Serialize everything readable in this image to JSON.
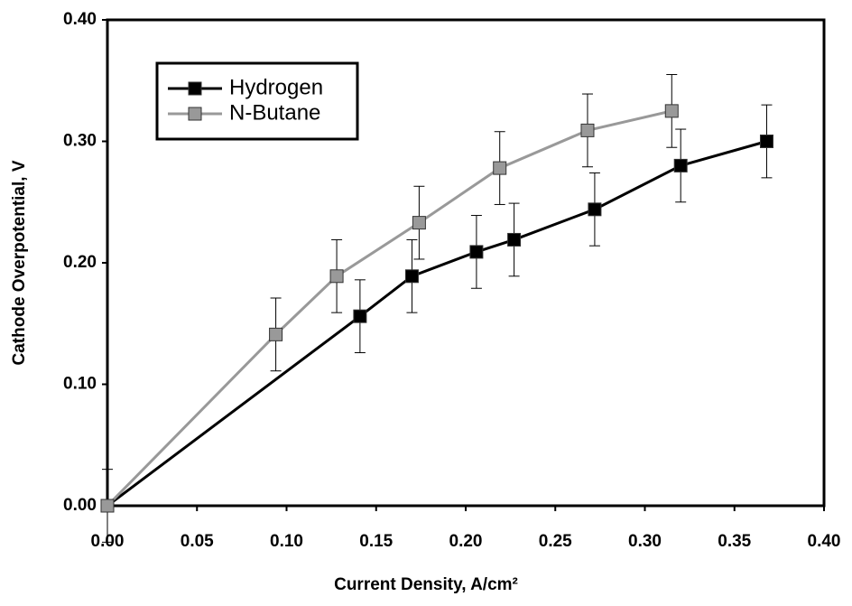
{
  "chart_data": {
    "type": "line",
    "x_label": "Current Density, A/cm²",
    "y_label": "Cathode Overpotential, V",
    "xlim": [
      0,
      0.4
    ],
    "ylim": [
      0,
      0.4
    ],
    "xticks": [
      {
        "value": 0,
        "label": "0.00"
      },
      {
        "value": 0.05,
        "label": "0.05"
      },
      {
        "value": 0.1,
        "label": "0.10"
      },
      {
        "value": 0.15,
        "label": "0.15"
      },
      {
        "value": 0.2,
        "label": "0.20"
      },
      {
        "value": 0.25,
        "label": "0.25"
      },
      {
        "value": 0.3,
        "label": "0.30"
      },
      {
        "value": 0.35,
        "label": "0.35"
      },
      {
        "value": 0.4,
        "label": "0.40"
      }
    ],
    "yticks": [
      {
        "value": 0,
        "label": "0.00"
      },
      {
        "value": 0.1,
        "label": "0.10"
      },
      {
        "value": 0.2,
        "label": "0.20"
      },
      {
        "value": 0.3,
        "label": "0.30"
      },
      {
        "value": 0.4,
        "label": "0.40"
      }
    ],
    "legend": "upper left",
    "series": [
      {
        "name": "Hydrogen",
        "color": "#000000",
        "marker_color": "#000000",
        "x": [
          0,
          0.141,
          0.17,
          0.206,
          0.227,
          0.272,
          0.32,
          0.368
        ],
        "values": [
          0,
          0.156,
          0.189,
          0.209,
          0.219,
          0.244,
          0.28,
          0.3
        ],
        "errors": [
          0.03,
          0.03,
          0.03,
          0.03,
          0.03,
          0.03,
          0.03,
          0.03
        ]
      },
      {
        "name": "N-Butane",
        "color": "#999999",
        "marker_color": "#999999",
        "x": [
          0,
          0.094,
          0.128,
          0.174,
          0.219,
          0.268,
          0.315
        ],
        "values": [
          0,
          0.141,
          0.189,
          0.233,
          0.278,
          0.309,
          0.325
        ],
        "errors": [
          0,
          0.03,
          0.03,
          0.03,
          0.03,
          0.03,
          0.03
        ]
      }
    ]
  }
}
